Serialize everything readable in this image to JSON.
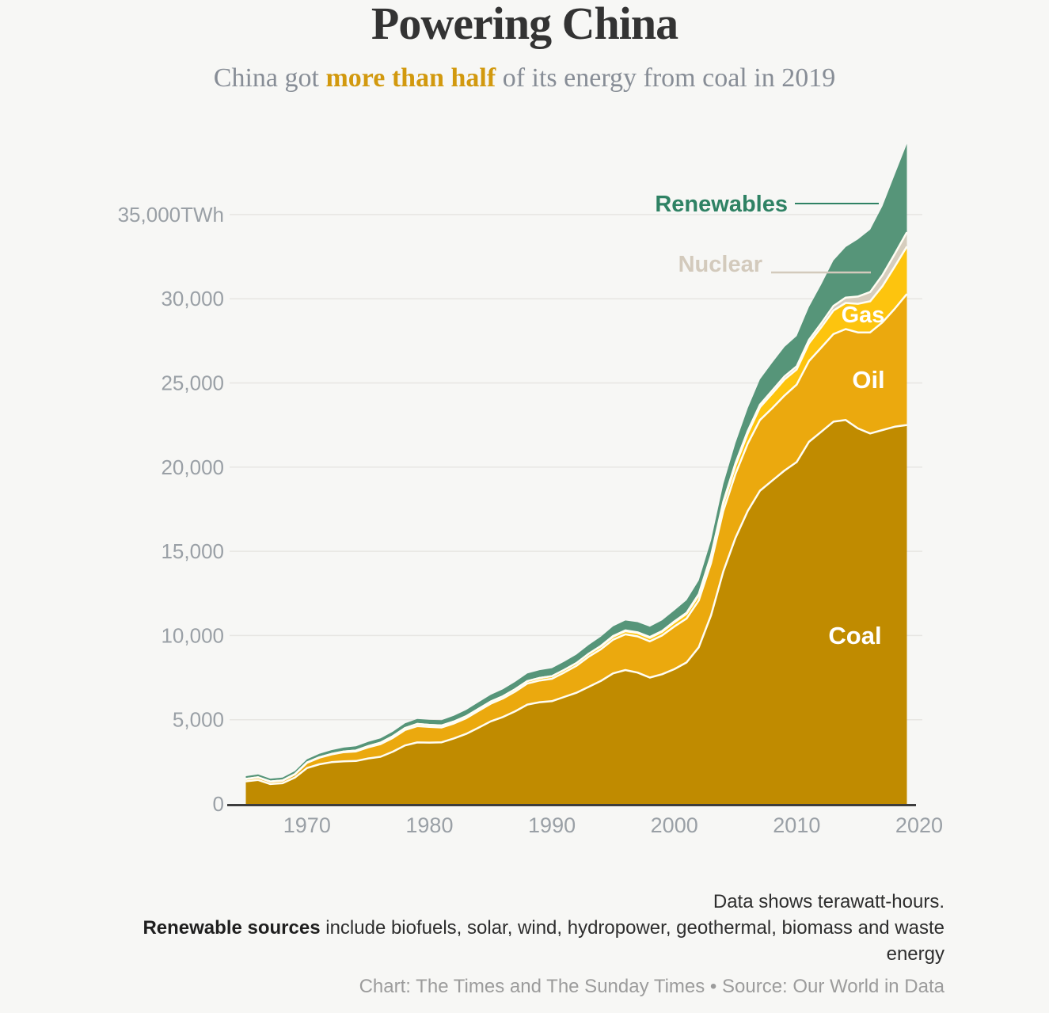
{
  "page": {
    "background": "#f7f7f5"
  },
  "header": {
    "title": "Powering China",
    "subtitle_pre": "China got ",
    "subtitle_highlight": "more than half",
    "subtitle_post": " of its energy from coal in 2019"
  },
  "chart_data": {
    "type": "area",
    "stacking": "stacked",
    "unit": "TWh",
    "title": "Powering China",
    "xlabel": "",
    "ylabel": "TWh",
    "xlim": [
      1965,
      2019
    ],
    "ylim": [
      0,
      39500
    ],
    "grid": true,
    "legend_position": "inline-annotations",
    "x": [
      1965,
      1966,
      1967,
      1968,
      1969,
      1970,
      1971,
      1972,
      1973,
      1974,
      1975,
      1976,
      1977,
      1978,
      1979,
      1980,
      1981,
      1982,
      1983,
      1984,
      1985,
      1986,
      1987,
      1988,
      1989,
      1990,
      1991,
      1992,
      1993,
      1994,
      1995,
      1996,
      1997,
      1998,
      1999,
      2000,
      2001,
      2002,
      2003,
      2004,
      2005,
      2006,
      2007,
      2008,
      2009,
      2010,
      2011,
      2012,
      2013,
      2014,
      2015,
      2016,
      2017,
      2018,
      2019
    ],
    "series": [
      {
        "name": "Coal",
        "color": "#c08b00",
        "label_color": "#ffffff",
        "values": [
          1340,
          1420,
          1180,
          1230,
          1560,
          2130,
          2350,
          2480,
          2530,
          2550,
          2700,
          2800,
          3100,
          3470,
          3650,
          3640,
          3660,
          3890,
          4160,
          4520,
          4900,
          5160,
          5500,
          5900,
          6040,
          6100,
          6350,
          6600,
          6950,
          7300,
          7750,
          7950,
          7800,
          7500,
          7700,
          8000,
          8400,
          9300,
          11200,
          13800,
          15800,
          17400,
          18600,
          19200,
          19800,
          20300,
          21500,
          22100,
          22700,
          22800,
          22300,
          22000,
          22200,
          22400,
          22500
        ]
      },
      {
        "name": "Oil",
        "color": "#eba90e",
        "label_color": "#ffffff",
        "values": [
          130,
          150,
          140,
          150,
          190,
          310,
          390,
          460,
          540,
          570,
          660,
          750,
          820,
          920,
          970,
          930,
          880,
          890,
          930,
          1000,
          1050,
          1100,
          1170,
          1250,
          1290,
          1330,
          1450,
          1600,
          1790,
          1880,
          2000,
          2120,
          2150,
          2150,
          2300,
          2530,
          2610,
          2780,
          3100,
          3600,
          3800,
          4000,
          4200,
          4300,
          4450,
          4600,
          4800,
          5000,
          5200,
          5400,
          5700,
          6000,
          6400,
          7000,
          7780
        ]
      },
      {
        "name": "Gas",
        "color": "#fdc40e",
        "label_color": "#ffffff",
        "values": [
          10,
          10,
          10,
          10,
          15,
          20,
          25,
          30,
          40,
          50,
          70,
          85,
          95,
          110,
          130,
          120,
          115,
          110,
          115,
          120,
          125,
          130,
          140,
          145,
          150,
          155,
          160,
          165,
          170,
          175,
          180,
          190,
          200,
          210,
          220,
          250,
          280,
          310,
          350,
          420,
          500,
          600,
          750,
          870,
          950,
          900,
          1050,
          1200,
          1400,
          1550,
          1700,
          1850,
          2150,
          2500,
          2820
        ]
      },
      {
        "name": "Nuclear",
        "color": "#d6cdbd",
        "label_color": "#d3cabc",
        "values": [
          0,
          0,
          0,
          0,
          0,
          0,
          0,
          0,
          0,
          0,
          0,
          0,
          0,
          0,
          0,
          0,
          0,
          0,
          0,
          0,
          0,
          0,
          0,
          0,
          0,
          0,
          0,
          0,
          10,
          30,
          40,
          45,
          45,
          50,
          50,
          55,
          60,
          70,
          100,
          130,
          140,
          150,
          160,
          180,
          190,
          190,
          210,
          240,
          270,
          320,
          430,
          550,
          650,
          750,
          850
        ]
      },
      {
        "name": "Renewables",
        "color": "#569579",
        "label_color": "#2f8264",
        "values": [
          165,
          170,
          170,
          170,
          180,
          195,
          210,
          225,
          235,
          255,
          260,
          260,
          270,
          285,
          295,
          300,
          315,
          350,
          375,
          395,
          405,
          420,
          440,
          450,
          465,
          475,
          485,
          500,
          515,
          545,
          575,
          590,
          600,
          615,
          630,
          650,
          750,
          810,
          900,
          1050,
          1200,
          1350,
          1500,
          1650,
          1750,
          1800,
          1950,
          2300,
          2700,
          3000,
          3400,
          3700,
          4100,
          4700,
          5250
        ]
      }
    ],
    "y_ticks": [
      {
        "value": 0,
        "label": "0"
      },
      {
        "value": 5000,
        "label": "5,000"
      },
      {
        "value": 10000,
        "label": "10,000"
      },
      {
        "value": 15000,
        "label": "15,000"
      },
      {
        "value": 20000,
        "label": "20,000"
      },
      {
        "value": 25000,
        "label": "25,000"
      },
      {
        "value": 30000,
        "label": "30,000"
      },
      {
        "value": 35000,
        "label": "35,000TWh"
      }
    ],
    "x_ticks": [
      {
        "value": 1970,
        "label": "1970"
      },
      {
        "value": 1980,
        "label": "1980"
      },
      {
        "value": 1990,
        "label": "1990"
      },
      {
        "value": 2000,
        "label": "2000"
      },
      {
        "value": 2010,
        "label": "2010"
      },
      {
        "value": 2020,
        "label": "2020"
      }
    ],
    "style": {
      "grid_color": "#e7e6e2",
      "axis_text_color": "#9aa0a6",
      "baseline_color": "#3d3d3d",
      "boundary_color": "#fffdf3",
      "accent_orange": "#d2990e"
    }
  },
  "footer": {
    "line1": "Data shows terawatt-hours.",
    "line2_bold": "Renewable sources",
    "line2_rest": " include biofuels, solar, wind, hydropower, geothermal, biomass and waste",
    "line3": "energy",
    "credit": "Chart: The Times and The Sunday Times • Source: Our World in Data"
  }
}
